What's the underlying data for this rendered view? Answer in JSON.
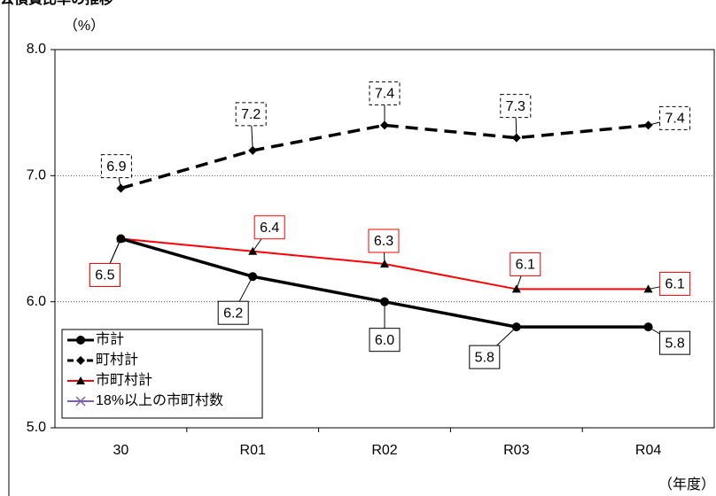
{
  "chart_data": {
    "type": "line",
    "title": "公債費比率の推移",
    "y_label": "（%）",
    "x_label": "（年度）",
    "categories": [
      "30",
      "R01",
      "R02",
      "R03",
      "R04"
    ],
    "series": [
      {
        "name": "市計",
        "color": "#000000",
        "style": "solid",
        "marker": "circle",
        "values": [
          6.5,
          6.2,
          6.0,
          5.8,
          5.8
        ],
        "value_labels": [
          "6.5",
          "6.2",
          "6.0",
          "5.8",
          "5.8"
        ]
      },
      {
        "name": "町村計",
        "color": "#000000",
        "style": "dashed",
        "marker": "diamond",
        "values": [
          6.9,
          7.2,
          7.4,
          7.3,
          7.4
        ],
        "value_labels": [
          "6.9",
          "7.2",
          "7.4",
          "7.3",
          "7.4"
        ]
      },
      {
        "name": "市町村計",
        "color": "#ff0000",
        "style": "solid",
        "marker": "triangle",
        "values": [
          6.5,
          6.4,
          6.3,
          6.1,
          6.1
        ],
        "value_labels": [
          "6.5",
          "6.4",
          "6.3",
          "6.1",
          "6.1"
        ]
      },
      {
        "name": "18%以上の市町村数",
        "color": "#7f5fa8",
        "style": "solid",
        "marker": "x",
        "values": [
          null,
          null,
          null,
          null,
          null
        ]
      }
    ],
    "ylim": [
      5.0,
      8.0
    ],
    "yticks": [
      {
        "value": 5,
        "label": "5.0"
      },
      {
        "value": 6,
        "label": "6.0"
      },
      {
        "value": 7,
        "label": "7.0"
      },
      {
        "value": 8,
        "label": "8.0"
      }
    ],
    "grid": true,
    "legend": "lower-left"
  }
}
